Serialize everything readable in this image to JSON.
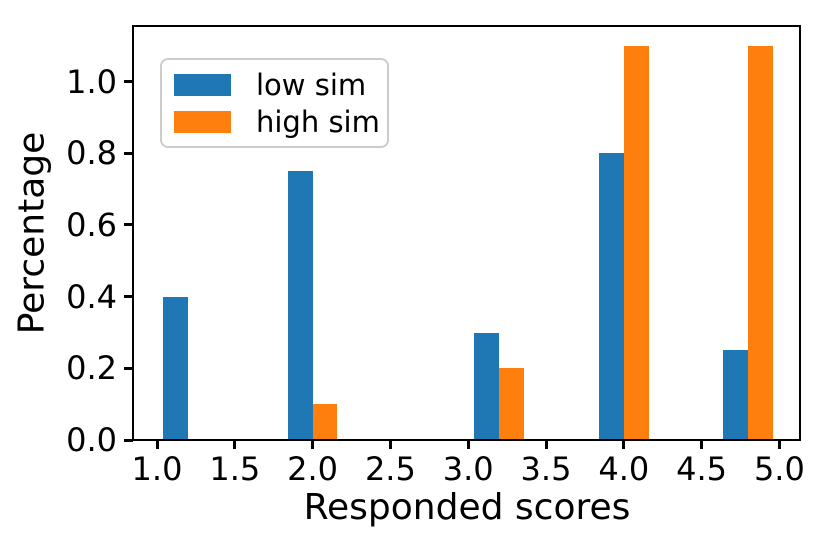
{
  "chart_data": {
    "type": "bar",
    "title": "",
    "xlabel": "Responded scores",
    "ylabel": "Percentage",
    "bin_centers": [
      1.2,
      2.0,
      3.2,
      4.0,
      4.8
    ],
    "series": [
      {
        "name": "low sim",
        "color": "#1f77b4",
        "values": [
          0.4,
          0.75,
          0.3,
          0.8,
          0.25
        ]
      },
      {
        "name": "high sim",
        "color": "#ff7f0e",
        "values": [
          0.0,
          0.1,
          0.2,
          1.1,
          1.1
        ]
      }
    ],
    "bar_width": 0.16,
    "xlim": [
      0.846,
      5.139
    ],
    "ylim": [
      0.0,
      1.155
    ],
    "xticks": [
      1.0,
      1.5,
      2.0,
      2.5,
      3.0,
      3.5,
      4.0,
      4.5,
      5.0
    ],
    "yticks": [
      0.0,
      0.2,
      0.4,
      0.6,
      0.8,
      1.0
    ],
    "tick_decimals": 1,
    "grid": false,
    "legend_position": "upper left",
    "axis_color": "#000000",
    "background_color": "#ffffff"
  }
}
